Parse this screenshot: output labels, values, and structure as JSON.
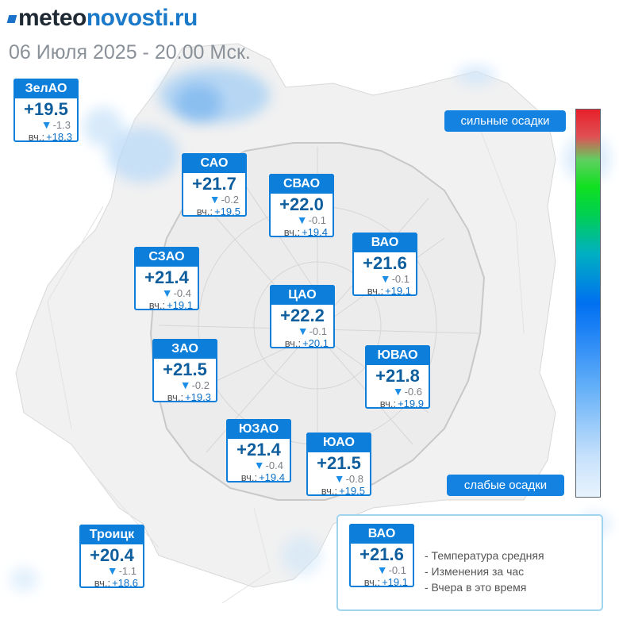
{
  "header": {
    "logo_part1": "meteo",
    "logo_part2": "novosti",
    "logo_part3": ".ru",
    "datetime": "06 Июля 2025 - 20.00 Мск."
  },
  "districts": [
    {
      "id": "zelao",
      "name": "ЗелАО",
      "temp": "+19.5",
      "change": "-1.3",
      "yesterday_label": "вч.:",
      "yesterday": "+18.3"
    },
    {
      "id": "sao",
      "name": "САО",
      "temp": "+21.7",
      "change": "-0.2",
      "yesterday_label": "вч.:",
      "yesterday": "+19.5"
    },
    {
      "id": "svao",
      "name": "СВАО",
      "temp": "+22.0",
      "change": "-0.1",
      "yesterday_label": "вч.:",
      "yesterday": "+19.4"
    },
    {
      "id": "vao",
      "name": "ВАО",
      "temp": "+21.6",
      "change": "-0.1",
      "yesterday_label": "вч.:",
      "yesterday": "+19.1"
    },
    {
      "id": "szao",
      "name": "СЗАО",
      "temp": "+21.4",
      "change": "-0.4",
      "yesterday_label": "вч.:",
      "yesterday": "+19.1"
    },
    {
      "id": "tsao",
      "name": "ЦАО",
      "temp": "+22.2",
      "change": "-0.1",
      "yesterday_label": "вч.:",
      "yesterday": "+20.1"
    },
    {
      "id": "zao",
      "name": "ЗАО",
      "temp": "+21.5",
      "change": "-0.2",
      "yesterday_label": "вч.:",
      "yesterday": "+19.3"
    },
    {
      "id": "yuvao",
      "name": "ЮВАО",
      "temp": "+21.8",
      "change": "-0.6",
      "yesterday_label": "вч.:",
      "yesterday": "+19.9"
    },
    {
      "id": "yuzao",
      "name": "ЮЗАО",
      "temp": "+21.4",
      "change": "-0.4",
      "yesterday_label": "вч.:",
      "yesterday": "+19.4"
    },
    {
      "id": "yuao",
      "name": "ЮАО",
      "temp": "+21.5",
      "change": "-0.8",
      "yesterday_label": "вч.:",
      "yesterday": "+19.5"
    },
    {
      "id": "troitsk",
      "name": "Троицк",
      "temp": "+20.4",
      "change": "-1.1",
      "yesterday_label": "вч.:",
      "yesterday": "+18.6"
    }
  ],
  "precip_scale": {
    "top_label": "сильные осадки",
    "bottom_label": "слабые осадки"
  },
  "legend": {
    "sample": {
      "name": "ВАО",
      "temp": "+21.6",
      "change": "-0.1",
      "yesterday_label": "вч.:",
      "yesterday": "+19.1"
    },
    "line1": "- Температура средняя",
    "line2": "- Изменения за час",
    "line3": "- Вчера в это время"
  },
  "colors": {
    "brand_blue": "#0d7fdb",
    "temp_text": "#0e5e9e",
    "scale_top": "#e8202a",
    "scale_bottom": "#e8f3fd"
  }
}
